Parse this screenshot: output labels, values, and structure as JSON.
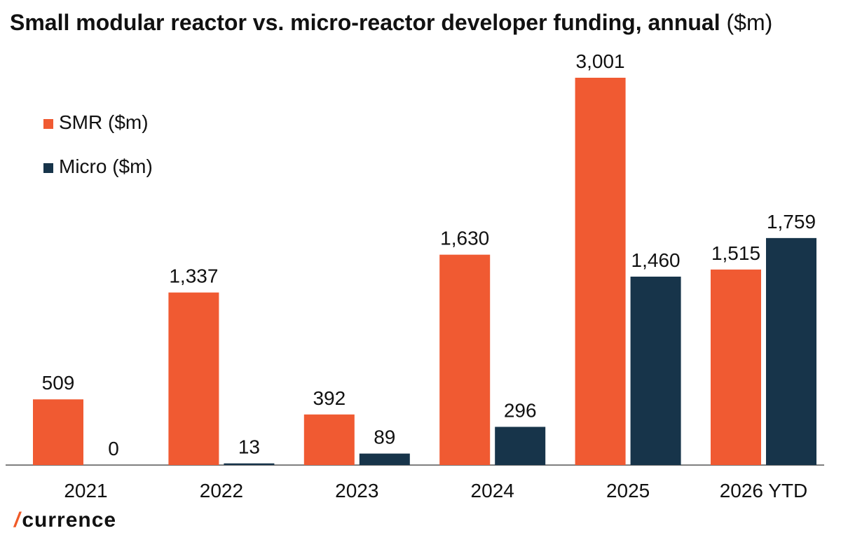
{
  "chart_data": {
    "type": "bar",
    "title": "Small modular reactor vs. micro-reactor developer funding, annual",
    "title_unit": "($m)",
    "categories": [
      "2021",
      "2022",
      "2023",
      "2024",
      "2025",
      "2026 YTD"
    ],
    "series": [
      {
        "name": "SMR ($m)",
        "color": "#f05a32",
        "values": [
          509,
          1337,
          392,
          1630,
          3001,
          1515
        ]
      },
      {
        "name": "Micro ($m)",
        "color": "#17344a",
        "values": [
          0,
          13,
          89,
          296,
          1460,
          1759
        ]
      }
    ],
    "data_labels": [
      [
        "509",
        "1,337",
        "392",
        "1,630",
        "3,001",
        "1,515"
      ],
      [
        "0",
        "13",
        "89",
        "296",
        "1,460",
        "1,759"
      ]
    ],
    "ylim": [
      0,
      3001
    ],
    "grid": false,
    "legend_position": "top-left",
    "xlabel": "",
    "ylabel": ""
  },
  "branding": {
    "mark": "/",
    "text": "currence",
    "mark_color": "#f05a28"
  }
}
